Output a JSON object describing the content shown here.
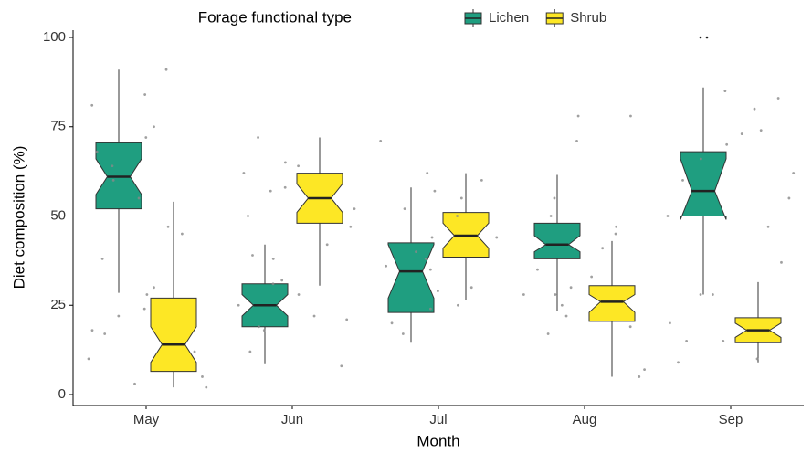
{
  "chart_data": {
    "type": "boxplot",
    "legend_title": "Forage functional type",
    "x_label": "Month",
    "y_label": "Diet composition (%)",
    "categories": [
      "May",
      "Jun",
      "Jul",
      "Aug",
      "Sep"
    ],
    "ylim": [
      0,
      100
    ],
    "yticks": [
      0,
      25,
      50,
      75,
      100
    ],
    "notched": true,
    "legend_position": "top",
    "series": [
      {
        "name": "Lichen",
        "color": "#1f9e80",
        "boxes": [
          {
            "whisker_low": 28.5,
            "q1": 52,
            "median": 61,
            "q3": 70.5,
            "whisker_high": 91,
            "notch_low": 56,
            "notch_high": 66,
            "outliers": [],
            "points": [
              84,
              75,
              68,
              60,
              55,
              28,
              18,
              12,
              7,
              3,
              22,
              45
            ]
          },
          {
            "whisker_low": 8.5,
            "q1": 19,
            "median": 25,
            "q3": 31,
            "whisker_high": 42,
            "notch_low": 22,
            "notch_high": 28,
            "outliers": [],
            "points": [
              62,
              58,
              47,
              39,
              32,
              28,
              22,
              18,
              12,
              52,
              65
            ]
          },
          {
            "whisker_low": 14.5,
            "q1": 23,
            "median": 34.5,
            "q3": 42.5,
            "whisker_high": 58,
            "notch_low": 27,
            "notch_high": 42,
            "outliers": [],
            "points": [
              57,
              52,
              46,
              38,
              30,
              25,
              20,
              17,
              44,
              36
            ]
          },
          {
            "whisker_low": 23.5,
            "q1": 38,
            "median": 42,
            "q3": 48,
            "whisker_high": 61.5,
            "notch_low": 40,
            "notch_high": 44.5,
            "outliers": [],
            "points": [
              78,
              71,
              55,
              50,
              45,
              35,
              28,
              24,
              19,
              7,
              5
            ]
          },
          {
            "whisker_low": 28,
            "q1": 50,
            "median": 57,
            "q3": 68,
            "whisker_high": 86,
            "notch_low": 49,
            "notch_high": 66,
            "outliers": [
              100
            ],
            "points": [
              80,
              74,
              66,
              55,
              50,
              28,
              21,
              15,
              9,
              62
            ]
          }
        ]
      },
      {
        "name": "Shrub",
        "color": "#fde725",
        "boxes": [
          {
            "whisker_low": 2,
            "q1": 6.5,
            "median": 14,
            "q3": 27,
            "whisker_high": 54,
            "notch_low": 9,
            "notch_high": 19,
            "outliers": [],
            "points": [
              91,
              81,
              72,
              64,
              47,
              38,
              30,
              24,
              17,
              10,
              5,
              2
            ]
          },
          {
            "whisker_low": 30.5,
            "q1": 48,
            "median": 55,
            "q3": 62,
            "whisker_high": 72,
            "notch_low": 51,
            "notch_high": 59,
            "outliers": [],
            "points": [
              72,
              64,
              57,
              50,
              42,
              38,
              31,
              25,
              21,
              19,
              8
            ]
          },
          {
            "whisker_low": 26.5,
            "q1": 38.5,
            "median": 44.5,
            "q3": 51,
            "whisker_high": 62,
            "notch_low": 41,
            "notch_high": 48,
            "outliers": [],
            "points": [
              71,
              62,
              55,
              50,
              44,
              40,
              35,
              29,
              24,
              60
            ]
          },
          {
            "whisker_low": 5,
            "q1": 20.5,
            "median": 26,
            "q3": 30.5,
            "whisker_high": 43,
            "notch_low": 23,
            "notch_high": 28,
            "outliers": [],
            "points": [
              78,
              47,
              41,
              33,
              28,
              25,
              22,
              17,
              30
            ]
          },
          {
            "whisker_low": 9,
            "q1": 14.5,
            "median": 18,
            "q3": 21.5,
            "whisker_high": 31.5,
            "notch_low": 16,
            "notch_high": 20,
            "outliers": [],
            "points": [
              85,
              83,
              73,
              70,
              60,
              47,
              37,
              28,
              20,
              15,
              10
            ]
          }
        ]
      }
    ]
  }
}
